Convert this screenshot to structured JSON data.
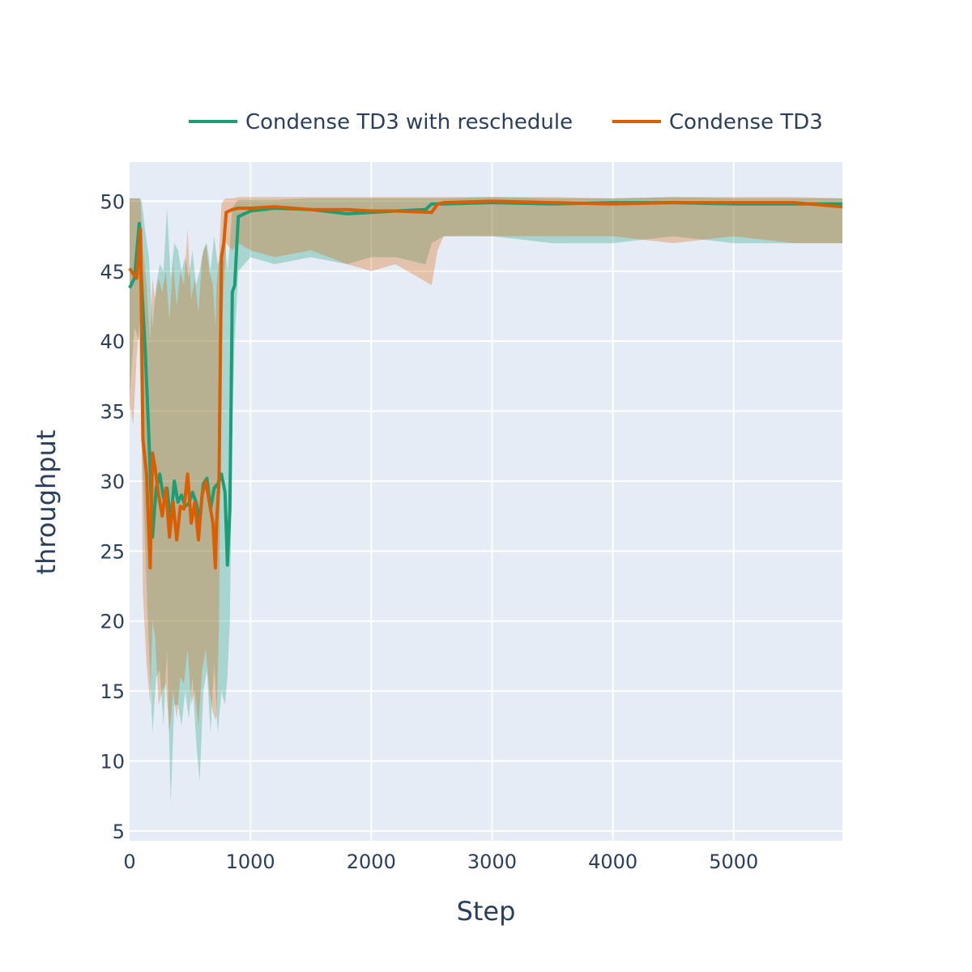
{
  "chart_data": {
    "type": "line",
    "title": "",
    "xlabel": "Step",
    "ylabel": "throughput",
    "xlim": [
      0,
      5900
    ],
    "ylim": [
      4.3,
      52.8
    ],
    "x_ticks": [
      0,
      1000,
      2000,
      3000,
      4000,
      5000
    ],
    "y_ticks": [
      5,
      10,
      15,
      20,
      25,
      30,
      35,
      40,
      45,
      50
    ],
    "x_tick_labels": [
      "0",
      "1000",
      "2000",
      "3000",
      "4000",
      "5000"
    ],
    "y_tick_labels": [
      "5",
      "10",
      "15",
      "20",
      "25",
      "30",
      "35",
      "40",
      "45",
      "50"
    ],
    "grid": true,
    "legend_position": "top",
    "background_color": "#e5ecf6",
    "series": [
      {
        "name": "Condense TD3 with reschedule",
        "color": "#1b9e77",
        "band_color": "#1b9e77",
        "x": [
          0,
          40,
          80,
          100,
          130,
          160,
          190,
          220,
          250,
          280,
          310,
          340,
          370,
          400,
          430,
          460,
          490,
          520,
          550,
          580,
          610,
          640,
          670,
          700,
          730,
          760,
          790,
          810,
          830,
          850,
          870,
          900,
          1000,
          1200,
          1500,
          1800,
          2000,
          2200,
          2450,
          2500,
          2600,
          3000,
          3500,
          4000,
          4500,
          5000,
          5500,
          5900
        ],
        "y": [
          43.8,
          44.5,
          48.4,
          44.0,
          39.2,
          33.0,
          26.0,
          29.5,
          30.5,
          28.8,
          29.5,
          27.0,
          30.0,
          28.5,
          29.0,
          28.2,
          28.4,
          29.2,
          28.5,
          27.2,
          29.8,
          30.2,
          28.0,
          29.5,
          29.8,
          30.5,
          29.2,
          24.0,
          28.0,
          43.5,
          44.0,
          48.9,
          49.3,
          49.5,
          49.4,
          49.1,
          49.2,
          49.3,
          49.4,
          49.8,
          49.8,
          49.9,
          49.8,
          49.9,
          49.9,
          49.8,
          49.8,
          49.8
        ],
        "upper": [
          50.2,
          50.2,
          50.2,
          50.0,
          47.8,
          46.0,
          41.0,
          44.0,
          45.5,
          45.0,
          49.5,
          44.5,
          47.0,
          46.5,
          45.0,
          46.0,
          44.5,
          46.5,
          44.0,
          45.0,
          46.5,
          47.0,
          45.0,
          47.5,
          45.5,
          46.0,
          47.0,
          45.0,
          47.0,
          49.5,
          49.8,
          50.1,
          50.1,
          50.1,
          50.2,
          50.2,
          50.2,
          50.2,
          50.2,
          50.2,
          50.2,
          50.3,
          50.2,
          50.2,
          50.3,
          50.2,
          50.2,
          50.2
        ],
        "lower": [
          36.0,
          41.0,
          40.0,
          33.0,
          25.0,
          18.0,
          12.0,
          16.0,
          16.5,
          12.5,
          18.0,
          7.0,
          14.0,
          14.0,
          12.5,
          15.0,
          13.0,
          16.0,
          11.5,
          8.5,
          15.0,
          16.5,
          12.0,
          17.0,
          12.0,
          15.0,
          14.0,
          16.0,
          20.0,
          34.0,
          40.0,
          45.0,
          46.0,
          45.5,
          46.0,
          45.5,
          46.0,
          46.0,
          45.5,
          47.0,
          47.5,
          47.5,
          47.0,
          47.0,
          47.5,
          47.0,
          47.0,
          47.0
        ]
      },
      {
        "name": "Condense TD3",
        "color": "#d95f02",
        "band_color": "#d95f02",
        "x": [
          0,
          30,
          60,
          90,
          110,
          140,
          170,
          190,
          210,
          240,
          270,
          300,
          330,
          360,
          390,
          420,
          450,
          480,
          510,
          540,
          570,
          600,
          630,
          660,
          690,
          710,
          720,
          740,
          760,
          780,
          800,
          850,
          900,
          1000,
          1200,
          1500,
          1800,
          2000,
          2200,
          2500,
          2550,
          2600,
          3000,
          3500,
          4000,
          4500,
          5000,
          5500,
          5900
        ],
        "y": [
          45.2,
          44.8,
          44.5,
          48.0,
          33.0,
          30.5,
          23.8,
          32.0,
          31.0,
          29.0,
          27.5,
          29.5,
          26.0,
          28.5,
          25.8,
          28.2,
          28.0,
          30.5,
          27.0,
          28.5,
          25.8,
          29.0,
          30.0,
          28.5,
          27.0,
          23.8,
          27.0,
          30.0,
          46.0,
          47.0,
          49.2,
          49.4,
          49.5,
          49.5,
          49.6,
          49.4,
          49.4,
          49.3,
          49.3,
          49.2,
          49.8,
          49.9,
          50.0,
          49.9,
          49.8,
          49.9,
          49.9,
          49.9,
          49.6
        ],
        "upper": [
          50.2,
          50.2,
          50.2,
          50.2,
          46.5,
          44.0,
          40.0,
          44.5,
          43.0,
          44.5,
          43.5,
          45.0,
          41.5,
          45.5,
          42.5,
          45.0,
          44.0,
          48.0,
          43.0,
          44.5,
          42.0,
          46.0,
          47.0,
          45.0,
          44.0,
          41.0,
          44.0,
          46.0,
          49.8,
          50.1,
          50.2,
          50.2,
          50.3,
          50.3,
          50.3,
          50.3,
          50.3,
          50.3,
          50.3,
          50.3,
          50.3,
          50.3,
          50.3,
          50.3,
          50.2,
          50.3,
          50.3,
          50.3,
          50.2
        ],
        "lower": [
          35.5,
          34.0,
          39.0,
          42.0,
          22.0,
          17.0,
          14.0,
          20.0,
          19.0,
          14.0,
          15.0,
          15.5,
          12.0,
          15.0,
          13.0,
          16.0,
          15.5,
          18.0,
          14.0,
          15.0,
          12.5,
          16.5,
          18.0,
          15.0,
          13.5,
          13.0,
          13.0,
          20.0,
          40.0,
          44.0,
          47.0,
          46.5,
          47.0,
          46.5,
          46.0,
          46.5,
          45.5,
          45.0,
          45.5,
          44.0,
          46.5,
          47.5,
          47.5,
          47.5,
          47.5,
          47.0,
          47.5,
          47.0,
          47.0
        ]
      }
    ]
  }
}
